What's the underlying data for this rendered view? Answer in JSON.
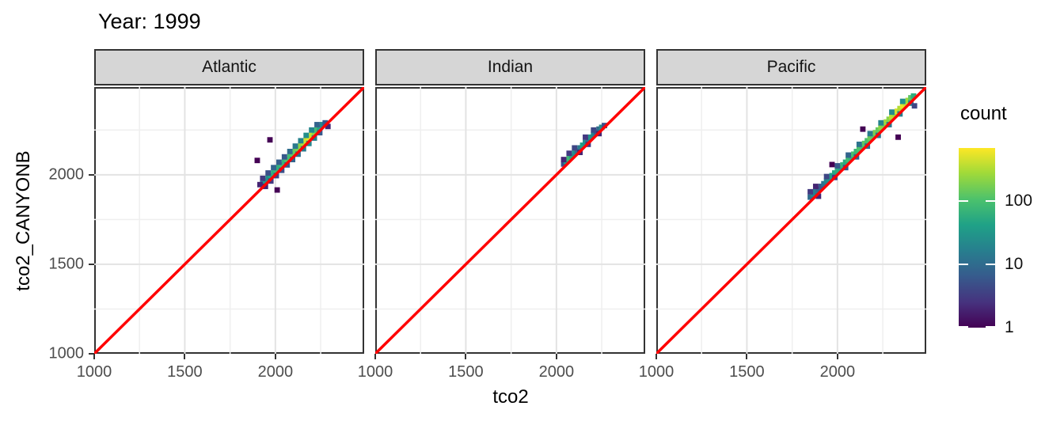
{
  "title": "Year: 1999",
  "axes": {
    "x_label": "tco2",
    "y_label": "tco2_CANYONB",
    "x_ticks": [
      1000,
      1500,
      2000
    ],
    "y_ticks": [
      1000,
      1500,
      2000
    ],
    "minor_breaks": [
      1250,
      1750,
      2250
    ],
    "xlim": [
      1000,
      2490
    ],
    "ylim": [
      1000,
      2490
    ]
  },
  "legend": {
    "title": "count",
    "tick_values": [
      1,
      10,
      100
    ],
    "tick_labels": [
      "1",
      "10",
      "100"
    ],
    "scale": "log10",
    "max_count": 690,
    "colormap": "viridis"
  },
  "colors": {
    "identity_line": "#FF0000",
    "strip_fill": "#D6D6D6",
    "panel_border": "#333333",
    "grid_major": "#E3E3E3",
    "grid_minor": "#EFEFEF",
    "tick_text": "#4D4D4D",
    "viridis_stops": [
      "#440154",
      "#46327e",
      "#365c8d",
      "#277f8e",
      "#1fa187",
      "#4ac16d",
      "#a0da39",
      "#fde725"
    ]
  },
  "chart_data": {
    "type": "heatmap",
    "subtype": "geom_bin2d",
    "title": "Year: 1999",
    "xlabel": "tco2",
    "ylabel": "tco2_CANYONB",
    "xlim": [
      1000,
      2490
    ],
    "ylim": [
      1000,
      2490
    ],
    "binwidth": 30,
    "grid": true,
    "legend_position": "right",
    "identity_line": {
      "slope": 1,
      "intercept": 0,
      "color": "#FF0000"
    },
    "fill_scale": {
      "name": "count",
      "type": "log10",
      "min": 1,
      "max": 690
    },
    "facets": [
      {
        "label": "Atlantic",
        "bins": [
          [
            1930,
            1950,
            12
          ],
          [
            1945,
            1965,
            30
          ],
          [
            1960,
            1980,
            25
          ],
          [
            1975,
            1995,
            45
          ],
          [
            1990,
            2010,
            60
          ],
          [
            2005,
            2025,
            80
          ],
          [
            2020,
            2040,
            60
          ],
          [
            2035,
            2055,
            90
          ],
          [
            2050,
            2070,
            70
          ],
          [
            2065,
            2085,
            110
          ],
          [
            2080,
            2100,
            95
          ],
          [
            2095,
            2115,
            130
          ],
          [
            2110,
            2130,
            150
          ],
          [
            2125,
            2145,
            180
          ],
          [
            2140,
            2160,
            220
          ],
          [
            2155,
            2175,
            300
          ],
          [
            2170,
            2190,
            420
          ],
          [
            2185,
            2205,
            550
          ],
          [
            2200,
            2220,
            380
          ],
          [
            2215,
            2235,
            200
          ],
          [
            2230,
            2250,
            90
          ],
          [
            2245,
            2265,
            45
          ],
          [
            2260,
            2280,
            20
          ],
          [
            1930,
            1980,
            3
          ],
          [
            1960,
            2010,
            5
          ],
          [
            1990,
            2040,
            8
          ],
          [
            2020,
            2070,
            7
          ],
          [
            2050,
            2100,
            6
          ],
          [
            2080,
            2130,
            10
          ],
          [
            2110,
            2160,
            14
          ],
          [
            2140,
            2190,
            18
          ],
          [
            2170,
            2220,
            25
          ],
          [
            2200,
            2250,
            20
          ],
          [
            2230,
            2280,
            8
          ],
          [
            1945,
            1935,
            2
          ],
          [
            1975,
            1965,
            3
          ],
          [
            2005,
            1995,
            4
          ],
          [
            2035,
            2025,
            5
          ],
          [
            2065,
            2055,
            6
          ],
          [
            2095,
            2085,
            8
          ],
          [
            2125,
            2115,
            10
          ],
          [
            2155,
            2145,
            14
          ],
          [
            2185,
            2175,
            20
          ],
          [
            2215,
            2205,
            16
          ],
          [
            2245,
            2235,
            6
          ],
          [
            1970,
            2195,
            1
          ],
          [
            1900,
            2080,
            1
          ],
          [
            2010,
            1915,
            1
          ],
          [
            1915,
            1945,
            2
          ],
          [
            2275,
            2290,
            6
          ],
          [
            2290,
            2270,
            2
          ]
        ]
      },
      {
        "label": "Indian",
        "bins": [
          [
            2040,
            2060,
            5
          ],
          [
            2055,
            2075,
            35
          ],
          [
            2070,
            2090,
            80
          ],
          [
            2085,
            2105,
            45
          ],
          [
            2100,
            2120,
            25
          ],
          [
            2115,
            2135,
            10
          ],
          [
            2130,
            2150,
            15
          ],
          [
            2145,
            2165,
            40
          ],
          [
            2160,
            2180,
            25
          ],
          [
            2175,
            2195,
            12
          ],
          [
            2190,
            2210,
            30
          ],
          [
            2205,
            2225,
            18
          ],
          [
            2220,
            2240,
            6
          ],
          [
            2235,
            2255,
            10
          ],
          [
            2250,
            2265,
            22
          ],
          [
            2040,
            2085,
            2
          ],
          [
            2070,
            2120,
            3
          ],
          [
            2100,
            2150,
            4
          ],
          [
            2160,
            2210,
            3
          ],
          [
            2205,
            2250,
            4
          ],
          [
            2130,
            2125,
            2
          ],
          [
            2175,
            2170,
            3
          ],
          [
            2235,
            2230,
            2
          ],
          [
            2265,
            2275,
            5
          ]
        ]
      },
      {
        "label": "Pacific",
        "bins": [
          [
            1850,
            1875,
            10
          ],
          [
            1865,
            1890,
            18
          ],
          [
            1880,
            1905,
            15
          ],
          [
            1895,
            1920,
            8
          ],
          [
            1910,
            1935,
            6
          ],
          [
            1925,
            1950,
            12
          ],
          [
            1940,
            1965,
            20
          ],
          [
            1955,
            1980,
            30
          ],
          [
            1970,
            1995,
            40
          ],
          [
            1985,
            2010,
            50
          ],
          [
            2000,
            2025,
            60
          ],
          [
            2015,
            2040,
            45
          ],
          [
            2030,
            2055,
            70
          ],
          [
            2045,
            2070,
            55
          ],
          [
            2060,
            2085,
            90
          ],
          [
            2075,
            2100,
            65
          ],
          [
            2090,
            2115,
            100
          ],
          [
            2105,
            2130,
            80
          ],
          [
            2120,
            2145,
            110
          ],
          [
            2135,
            2160,
            95
          ],
          [
            2150,
            2175,
            130
          ],
          [
            2165,
            2190,
            105
          ],
          [
            2180,
            2205,
            150
          ],
          [
            2195,
            2220,
            125
          ],
          [
            2210,
            2235,
            180
          ],
          [
            2225,
            2250,
            145
          ],
          [
            2240,
            2265,
            220
          ],
          [
            2255,
            2280,
            175
          ],
          [
            2270,
            2295,
            280
          ],
          [
            2285,
            2310,
            210
          ],
          [
            2300,
            2325,
            350
          ],
          [
            2315,
            2340,
            260
          ],
          [
            2330,
            2355,
            460
          ],
          [
            2345,
            2370,
            320
          ],
          [
            2360,
            2385,
            560
          ],
          [
            2375,
            2400,
            380
          ],
          [
            2390,
            2415,
            260
          ],
          [
            2405,
            2430,
            130
          ],
          [
            2420,
            2440,
            60
          ],
          [
            1850,
            1905,
            3
          ],
          [
            1880,
            1935,
            2
          ],
          [
            1940,
            1990,
            4
          ],
          [
            2000,
            2050,
            6
          ],
          [
            2060,
            2110,
            8
          ],
          [
            2120,
            2170,
            12
          ],
          [
            2180,
            2230,
            15
          ],
          [
            2240,
            2290,
            18
          ],
          [
            2300,
            2350,
            22
          ],
          [
            2360,
            2410,
            25
          ],
          [
            1985,
            1985,
            3
          ],
          [
            2045,
            2040,
            5
          ],
          [
            2105,
            2100,
            7
          ],
          [
            2165,
            2160,
            9
          ],
          [
            2225,
            2220,
            11
          ],
          [
            2285,
            2280,
            13
          ],
          [
            2345,
            2340,
            16
          ],
          [
            2405,
            2400,
            18
          ],
          [
            2140,
            2255,
            1
          ],
          [
            2335,
            2210,
            1
          ],
          [
            1970,
            2057,
            1
          ],
          [
            1895,
            1880,
            2
          ],
          [
            2425,
            2385,
            4
          ]
        ]
      }
    ]
  }
}
